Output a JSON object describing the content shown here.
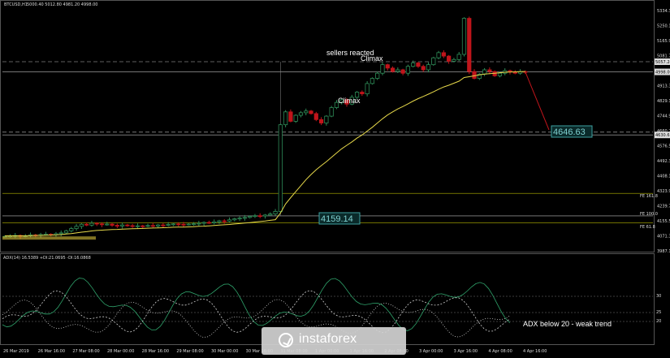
{
  "header": {
    "title": "BTCUSD,H1",
    "ohlc": "5000.40 5012.80 4981.20 4998.00"
  },
  "annotations": {
    "sellers_reacted": "sellers reacted",
    "climax_top": "Climax",
    "climax_left": "Climax",
    "target_box": "4646.63",
    "breakout_box": "4159.14",
    "adx_note": "ADX below 20 - weak trend"
  },
  "fib_labels": {
    "fe_1618": "FE 161.8",
    "fe_100": "FE 100.0",
    "fe_618": "FE 61.8"
  },
  "adx_panel": {
    "header": "ADX(14) 16.5389 +DI:21.0695 -DI:16.0868",
    "levels": [
      "30",
      "25",
      "20"
    ]
  },
  "price_axis_labels": [
    "5334.35",
    "5250.15",
    "5165.95",
    "5081.75",
    "4997.55",
    "4913.35",
    "4829.15",
    "4744.95",
    "4660.75",
    "4576.55",
    "4492.35",
    "4408.15",
    "4323.95",
    "4239.75",
    "4155.55",
    "4071.35",
    "3987.15"
  ],
  "price_axis_highlight": [
    "5057.24",
    "4998.00",
    "4630.61"
  ],
  "time_axis_labels": [
    "26 Mar 2019",
    "26 Mar 16:00",
    "27 Mar 08:00",
    "28 Mar 00:00",
    "28 Mar 16:00",
    "29 Mar 08:00",
    "30 Mar 00:00",
    "30 Mar 16:00",
    "31 Mar 08:00",
    "1 Apr 00:00",
    "1 Apr 16:00",
    "2 Apr 08:00",
    "3 Apr 00:00",
    "3 Apr 16:00",
    "4 Apr 08:00",
    "4 Apr 16:00"
  ],
  "watermark": "instaforex",
  "colors": {
    "bull": "#2e8b57",
    "bear": "#c0151b",
    "ma": "#e6d84a",
    "fib": "#b3b300",
    "adx_main": "#2fa36b",
    "adx_di": "#cfcfcf",
    "target_box": "#3da0a0"
  },
  "chart_data": {
    "type": "candlestick",
    "instrument": "BTCUSD",
    "timeframe": "H1",
    "ylim": [
      3960,
      5360
    ],
    "levels": [
      5057.24,
      4998.0,
      4646.63,
      4630.61,
      4290.0,
      4159.14,
      4118.0
    ],
    "close_path": [
      4040,
      4042,
      4045,
      4040,
      4043,
      4048,
      4046,
      4050,
      4052,
      4049,
      4055,
      4060,
      4072,
      4085,
      4098,
      4110,
      4105,
      4116,
      4112,
      4108,
      4111,
      4104,
      4100,
      4106,
      4102,
      4098,
      4101,
      4099,
      4103,
      4100,
      4106,
      4104,
      4109,
      4112,
      4110,
      4108,
      4111,
      4113,
      4116,
      4121,
      4118,
      4124,
      4130,
      4128,
      4136,
      4142,
      4146,
      4150,
      4156,
      4160,
      4158,
      4164,
      4170,
      4185,
      4690,
      4765,
      4710,
      4745,
      4760,
      4770,
      4755,
      4720,
      4700,
      4740,
      4790,
      4820,
      4835,
      4810,
      4850,
      4880,
      4870,
      4930,
      4960,
      4990,
      5040,
      5020,
      5000,
      5010,
      4990,
      5030,
      5050,
      5030,
      5010,
      5040,
      5080,
      5110,
      5090,
      5060,
      5070,
      5100,
      5310,
      5000,
      4960,
      4985,
      5010,
      5000,
      4975,
      4990,
      5005,
      4998,
      4990,
      5000,
      4998
    ],
    "ma_path": [
      4043,
      4043,
      4043,
      4043,
      4043,
      4044,
      4045,
      4045,
      4046,
      4047,
      4048,
      4050,
      4053,
      4056,
      4060,
      4064,
      4067,
      4071,
      4074,
      4076,
      4078,
      4079,
      4080,
      4082,
      4083,
      4084,
      4085,
      4086,
      4087,
      4088,
      4089,
      4090,
      4091,
      4093,
      4094,
      4094,
      4095,
      4096,
      4098,
      4099,
      4101,
      4103,
      4105,
      4107,
      4109,
      4112,
      4114,
      4117,
      4120,
      4123,
      4126,
      4129,
      4133,
      4137,
      4175,
      4228,
      4265,
      4300,
      4335,
      4370,
      4400,
      4428,
      4452,
      4475,
      4500,
      4525,
      4550,
      4570,
      4590,
      4612,
      4630,
      4653,
      4675,
      4700,
      4725,
      4747,
      4765,
      4782,
      4796,
      4812,
      4828,
      4842,
      4855,
      4868,
      4882,
      4897,
      4910,
      4920,
      4932,
      4944,
      4965,
      4970,
      4975,
      4980,
      4985,
      4988,
      4990,
      4993,
      4996,
      4997,
      4998,
      4999,
      5000
    ]
  }
}
